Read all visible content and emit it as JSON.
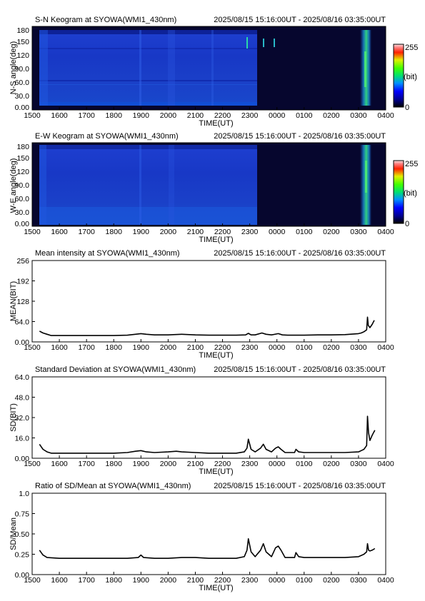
{
  "xaxis": {
    "label": "TIME(UT)",
    "ticks": [
      "1500",
      "1600",
      "1700",
      "1800",
      "1900",
      "2000",
      "2100",
      "2200",
      "2300",
      "0000",
      "0100",
      "0200",
      "0300",
      "0400"
    ]
  },
  "keograms": [
    {
      "title": "S-N Keogram at SYOWA(WMI1_430nm)",
      "range": "2025/08/15 15:16:00UT - 2025/08/16 03:35:00UT",
      "ylabel": "N-S angle(deg)",
      "yticks": [
        "180",
        "150",
        "120",
        "90.0",
        "60.0",
        "30.0",
        "0.00"
      ],
      "colorbar": {
        "max": "255",
        "unit": "(bit)",
        "min": "0"
      }
    },
    {
      "title": "E-W Keogram at SYOWA(WMI1_430nm)",
      "range": "2025/08/15 15:16:00UT - 2025/08/16 03:35:00UT",
      "ylabel": "W-E angle(deg)",
      "yticks": [
        "180",
        "150",
        "120",
        "90.0",
        "60.0",
        "30.0",
        "0.00"
      ],
      "colorbar": {
        "max": "255",
        "unit": "(bit)",
        "min": "0"
      }
    }
  ],
  "chart_data": [
    {
      "type": "line",
      "title": "Mean intensity at SYOWA(WMI1_430nm)",
      "range": "2025/08/15 15:16:00UT - 2025/08/16 03:35:00UT",
      "xlabel": "TIME(UT)",
      "ylabel": "MEAN(BIT)",
      "yticks": [
        "256",
        "192",
        "128",
        "64.0",
        "0.00"
      ],
      "ylim": [
        0,
        256
      ],
      "xlim": [
        15.0,
        28.0
      ],
      "series": [
        {
          "x": [
            15.27,
            15.4,
            15.55,
            15.7,
            16.0,
            16.5,
            17.0,
            17.5,
            18.0,
            18.5,
            18.8,
            19.0,
            19.2,
            19.5,
            20.0,
            20.2,
            20.5,
            21.0,
            21.5,
            22.0,
            22.5,
            22.85,
            22.95,
            23.05,
            23.2,
            23.45,
            23.6,
            23.8,
            24.05,
            24.2,
            24.4,
            25.0,
            25.5,
            26.0,
            26.5,
            27.0,
            27.1,
            27.2,
            27.3,
            27.33,
            27.36,
            27.42,
            27.5,
            27.58
          ],
          "y": [
            34,
            28,
            24,
            20,
            20,
            20,
            20,
            20,
            20,
            21,
            24,
            26,
            24,
            22,
            22,
            23,
            24,
            22,
            21,
            21,
            21,
            22,
            27,
            22,
            22,
            28,
            24,
            22,
            26,
            22,
            21,
            21,
            22,
            22,
            23,
            26,
            28,
            32,
            38,
            78,
            52,
            45,
            55,
            68
          ]
        }
      ]
    },
    {
      "type": "line",
      "title": "Standard Deviation at SYOWA(WMI1_430nm)",
      "range": "2025/08/15 15:16:00UT - 2025/08/16 03:35:00UT",
      "xlabel": "TIME(UT)",
      "ylabel": "SD(BIT)",
      "yticks": [
        "64.0",
        "48.0",
        "32.0",
        "16.0",
        "0.00"
      ],
      "ylim": [
        0,
        64
      ],
      "xlim": [
        15.0,
        28.0
      ],
      "series": [
        {
          "x": [
            15.27,
            15.4,
            15.55,
            15.7,
            16.0,
            16.5,
            17.0,
            17.5,
            18.0,
            18.5,
            18.8,
            19.0,
            19.2,
            19.5,
            20.0,
            20.3,
            20.5,
            21.0,
            21.5,
            22.0,
            22.5,
            22.8,
            22.9,
            22.95,
            23.05,
            23.2,
            23.4,
            23.5,
            23.6,
            23.8,
            23.95,
            24.05,
            24.15,
            24.3,
            24.65,
            24.7,
            24.8,
            25.0,
            25.5,
            26.0,
            26.5,
            27.0,
            27.1,
            27.2,
            27.3,
            27.33,
            27.37,
            27.42,
            27.5,
            27.6
          ],
          "y": [
            11,
            7,
            5,
            4,
            4,
            4,
            4,
            4,
            4,
            4.5,
            5.5,
            6,
            5,
            4.5,
            5,
            5.5,
            5,
            4.5,
            4,
            4,
            4,
            5,
            8,
            15,
            7,
            5,
            8,
            11,
            7,
            5,
            8,
            9,
            7,
            4.5,
            4.5,
            7,
            5,
            4.5,
            4.5,
            4.5,
            4.5,
            5,
            6,
            7,
            10,
            33,
            20,
            14,
            18,
            22
          ]
        }
      ]
    },
    {
      "type": "line",
      "title": "Ratio of SD/Mean at SYOWA(WMI1_430nm)",
      "range": "2025/08/15 15:16:00UT - 2025/08/16 03:35:00UT",
      "xlabel": "TIME(UT)",
      "ylabel": "SD/Mean",
      "yticks": [
        "1.0",
        "0.75",
        "0.50",
        "0.25",
        "0.00"
      ],
      "ylim": [
        0,
        1.0
      ],
      "xlim": [
        15.0,
        28.0
      ],
      "series": [
        {
          "x": [
            15.27,
            15.4,
            15.55,
            16.0,
            16.5,
            17.0,
            17.5,
            18.0,
            18.5,
            18.9,
            19.0,
            19.1,
            19.5,
            20.0,
            20.5,
            21.0,
            21.5,
            22.0,
            22.5,
            22.8,
            22.9,
            22.95,
            23.05,
            23.2,
            23.4,
            23.5,
            23.6,
            23.8,
            23.95,
            24.05,
            24.15,
            24.3,
            24.65,
            24.7,
            24.8,
            25.0,
            25.5,
            26.0,
            26.5,
            27.0,
            27.2,
            27.3,
            27.33,
            27.37,
            27.42,
            27.5,
            27.6
          ],
          "y": [
            0.3,
            0.24,
            0.21,
            0.2,
            0.2,
            0.2,
            0.2,
            0.2,
            0.2,
            0.21,
            0.24,
            0.21,
            0.2,
            0.2,
            0.21,
            0.21,
            0.2,
            0.2,
            0.2,
            0.22,
            0.3,
            0.44,
            0.28,
            0.22,
            0.3,
            0.38,
            0.28,
            0.22,
            0.33,
            0.35,
            0.3,
            0.21,
            0.21,
            0.27,
            0.22,
            0.21,
            0.21,
            0.21,
            0.21,
            0.22,
            0.25,
            0.28,
            0.38,
            0.3,
            0.29,
            0.3,
            0.32
          ]
        }
      ]
    }
  ]
}
